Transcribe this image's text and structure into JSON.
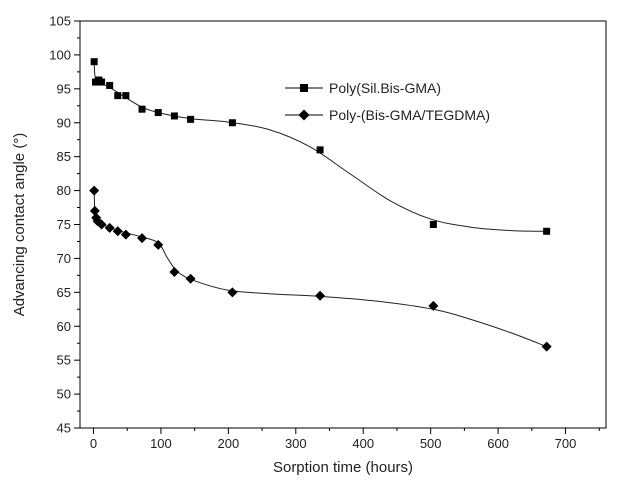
{
  "chart_data": {
    "type": "scatter",
    "title": "",
    "xlabel": "Sorption time (hours)",
    "ylabel": "Advancing contact angle (°)",
    "xlim": [
      -20,
      760
    ],
    "ylim": [
      45,
      105
    ],
    "xticks": [
      0,
      100,
      200,
      300,
      400,
      500,
      600,
      700
    ],
    "yticks": [
      45,
      50,
      55,
      60,
      65,
      70,
      75,
      80,
      85,
      90,
      95,
      100,
      105
    ],
    "grid": false,
    "legend_position": "top-right",
    "series": [
      {
        "name": "Poly(Sil.Bis-GMA)",
        "marker": "square",
        "color": "#000000",
        "points": [
          {
            "x": 1,
            "y": 99
          },
          {
            "x": 3,
            "y": 96
          },
          {
            "x": 8,
            "y": 96.3
          },
          {
            "x": 12,
            "y": 96
          },
          {
            "x": 24,
            "y": 95.5
          },
          {
            "x": 36,
            "y": 94
          },
          {
            "x": 48,
            "y": 94
          },
          {
            "x": 72,
            "y": 92
          },
          {
            "x": 96,
            "y": 91.5
          },
          {
            "x": 120,
            "y": 91
          },
          {
            "x": 144,
            "y": 90.5
          },
          {
            "x": 206,
            "y": 90
          },
          {
            "x": 336,
            "y": 86
          },
          {
            "x": 504,
            "y": 75
          },
          {
            "x": 672,
            "y": 74
          }
        ],
        "fit": [
          [
            1,
            99
          ],
          [
            3,
            96.5
          ],
          [
            12,
            95.8
          ],
          [
            24,
            95.2
          ],
          [
            48,
            93.7
          ],
          [
            72,
            92.3
          ],
          [
            100,
            91.4
          ],
          [
            144,
            90.6
          ],
          [
            200,
            90.1
          ],
          [
            260,
            89
          ],
          [
            320,
            86.5
          ],
          [
            380,
            82.5
          ],
          [
            440,
            78.5
          ],
          [
            500,
            75.8
          ],
          [
            560,
            74.6
          ],
          [
            620,
            74.1
          ],
          [
            672,
            74
          ]
        ]
      },
      {
        "name": "Poly-(Bis-GMA/TEGDMA)",
        "marker": "diamond",
        "color": "#000000",
        "points": [
          {
            "x": 1,
            "y": 80
          },
          {
            "x": 2,
            "y": 77
          },
          {
            "x": 4,
            "y": 76
          },
          {
            "x": 6,
            "y": 75.5
          },
          {
            "x": 12,
            "y": 75
          },
          {
            "x": 24,
            "y": 74.5
          },
          {
            "x": 36,
            "y": 74
          },
          {
            "x": 48,
            "y": 73.5
          },
          {
            "x": 72,
            "y": 73
          },
          {
            "x": 96,
            "y": 72
          },
          {
            "x": 120,
            "y": 68
          },
          {
            "x": 144,
            "y": 67
          },
          {
            "x": 206,
            "y": 65
          },
          {
            "x": 336,
            "y": 64.5
          },
          {
            "x": 504,
            "y": 63
          },
          {
            "x": 672,
            "y": 57
          }
        ],
        "fit": [
          [
            1,
            80
          ],
          [
            2,
            77
          ],
          [
            4,
            76
          ],
          [
            8,
            75.3
          ],
          [
            20,
            74.7
          ],
          [
            40,
            74
          ],
          [
            70,
            73.2
          ],
          [
            96,
            72.3
          ],
          [
            110,
            70
          ],
          [
            125,
            68
          ],
          [
            150,
            66.7
          ],
          [
            200,
            65.3
          ],
          [
            260,
            64.8
          ],
          [
            336,
            64.4
          ],
          [
            420,
            63.7
          ],
          [
            504,
            62.5
          ],
          [
            560,
            61
          ],
          [
            620,
            59
          ],
          [
            672,
            57
          ]
        ]
      }
    ]
  }
}
